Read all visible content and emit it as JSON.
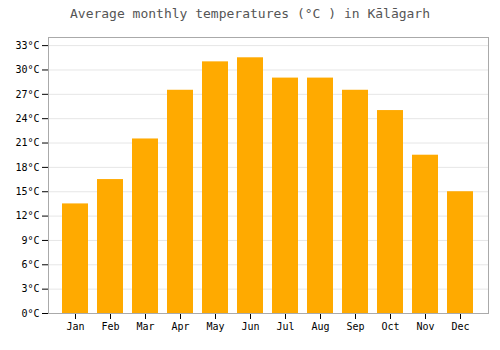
{
  "chart_data": {
    "type": "bar",
    "title": "Average monthly temperatures (°C ) in Kālāgarh",
    "categories": [
      "Jan",
      "Feb",
      "Mar",
      "Apr",
      "May",
      "Jun",
      "Jul",
      "Aug",
      "Sep",
      "Oct",
      "Nov",
      "Dec"
    ],
    "values": [
      13.5,
      16.5,
      21.5,
      27.5,
      31.0,
      31.5,
      29.0,
      29.0,
      27.5,
      25.0,
      19.5,
      15.0
    ],
    "color": "#FFAA00",
    "ylim": [
      0,
      34
    ],
    "yticks": [
      {
        "value": 0,
        "label": "0°C"
      },
      {
        "value": 3,
        "label": "3°C"
      },
      {
        "value": 6,
        "label": "6°C"
      },
      {
        "value": 9,
        "label": "9°C"
      },
      {
        "value": 12,
        "label": "12°C"
      },
      {
        "value": 15,
        "label": "15°C"
      },
      {
        "value": 18,
        "label": "18°C"
      },
      {
        "value": 21,
        "label": "21°C"
      },
      {
        "value": 24,
        "label": "24°C"
      },
      {
        "value": 27,
        "label": "27°C"
      },
      {
        "value": 30,
        "label": "30°C"
      },
      {
        "value": 33,
        "label": "33°C"
      }
    ],
    "grid": true
  }
}
